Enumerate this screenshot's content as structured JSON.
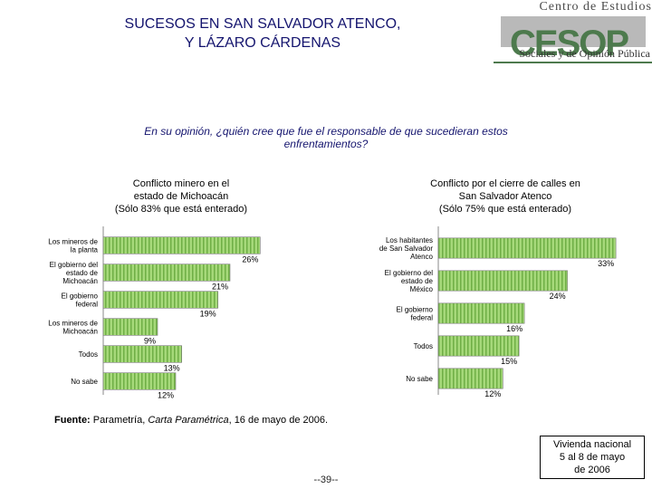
{
  "header": {
    "title_line1": "SUCESOS EN SAN SALVADOR ATENCO,",
    "title_line2": "Y LÁZARO CÁRDENAS"
  },
  "logo": {
    "top_text": "Centro de Estudios",
    "big_text": "CESOP",
    "bottom_text": "Sociales y de Opinión Pública"
  },
  "question": "En su opinión, ¿quién cree que fue el responsable de que sucedieran estos enfrentamientos?",
  "colors": {
    "bar_fill": "#a6d97a",
    "bar_stripe": "#6fae45",
    "title_color": "#14146e"
  },
  "chart_data": [
    {
      "type": "bar",
      "orientation": "horizontal",
      "title_line1": "Conflicto minero en el",
      "title_line2": "estado de Michoacán",
      "title_line3": "(Sólo 83% que está enterado)",
      "categories": [
        "Los mineros de la planta",
        "El gobierno del estado de Michoacán",
        "El gobierno federal",
        "Los mineros de Michoacán",
        "Todos",
        "No sabe"
      ],
      "label_lines": [
        [
          "Los mineros de",
          "la planta"
        ],
        [
          "El gobierno del",
          "estado de",
          "Michoacán"
        ],
        [
          "El gobierno",
          "federal"
        ],
        [
          "Los mineros de",
          "Michoacán"
        ],
        [
          "Todos"
        ],
        [
          "No sabe"
        ]
      ],
      "values": [
        26,
        21,
        19,
        9,
        13,
        12
      ],
      "labels": [
        "26%",
        "21%",
        "19%",
        "9%",
        "13%",
        "12%"
      ],
      "xlim": [
        0,
        30
      ]
    },
    {
      "type": "bar",
      "orientation": "horizontal",
      "title_line1": "Conflicto por el cierre de calles en",
      "title_line2": "San Salvador Atenco",
      "title_line3": "(Sólo 75% que está enterado)",
      "categories": [
        "Los habitantes de San Salvador Atenco",
        "El gobierno del estado de México",
        "El gobierno federal",
        "Todos",
        "No sabe"
      ],
      "label_lines": [
        [
          "Los habitantes",
          "de San Salvador",
          "Atenco"
        ],
        [
          "El gobierno del",
          "estado de",
          "México"
        ],
        [
          "El gobierno",
          "federal"
        ],
        [
          "Todos"
        ],
        [
          "No sabe"
        ]
      ],
      "values": [
        33,
        24,
        16,
        15,
        12
      ],
      "labels": [
        "33%",
        "24%",
        "16%",
        "15%",
        "12%"
      ],
      "xlim": [
        0,
        35
      ]
    }
  ],
  "footer": {
    "source_label": "Fuente:",
    "source_text_a": " Parametría, ",
    "source_text_italic": "Carta Paramétrica",
    "source_text_b": ", 16 de mayo de 2006.",
    "note_line1": "Vivienda nacional",
    "note_line2": "5 al 8 de mayo",
    "note_line3": "de 2006",
    "page_number": "--39--"
  }
}
